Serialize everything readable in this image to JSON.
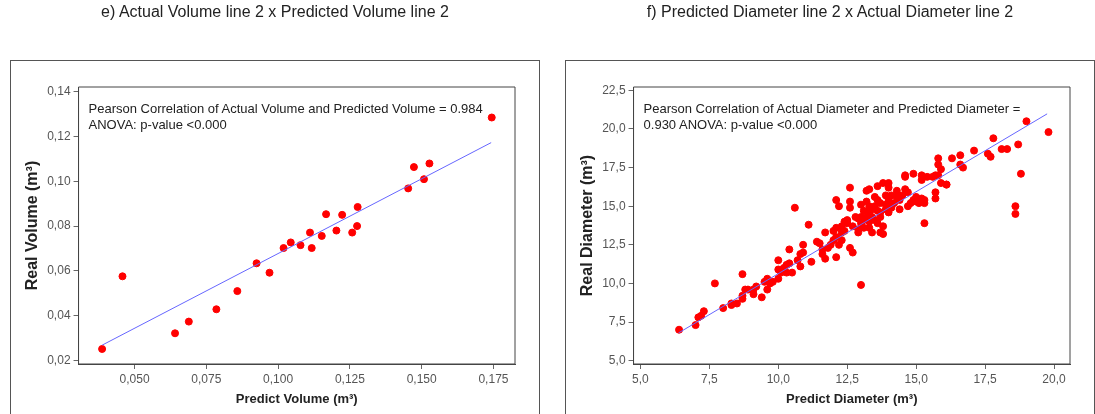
{
  "chart_data": [
    {
      "type": "scatter",
      "title": "e) Actual Volume line 2 x Predicted Volume line 2",
      "xlabel": "Predict Volume (m³)",
      "ylabel": "Real Volume (m³)",
      "annotations": [
        "Pearson Correlation of Actual Volume and Predicted Volume = 0.984",
        "ANOVA: p-value <0.000"
      ],
      "xlim": [
        0.0305,
        0.1825
      ],
      "ylim": [
        0.0185,
        0.142
      ],
      "xticks": [
        {
          "value": 0.05,
          "label": "0,050"
        },
        {
          "value": 0.075,
          "label": "0,075"
        },
        {
          "value": 0.1,
          "label": "0,100"
        },
        {
          "value": 0.125,
          "label": "0,125"
        },
        {
          "value": 0.15,
          "label": "0,150"
        },
        {
          "value": 0.175,
          "label": "0,175"
        }
      ],
      "yticks": [
        {
          "value": 0.02,
          "label": "0,02"
        },
        {
          "value": 0.04,
          "label": "0,04"
        },
        {
          "value": 0.06,
          "label": "0,06"
        },
        {
          "value": 0.08,
          "label": "0,08"
        },
        {
          "value": 0.1,
          "label": "0,10"
        },
        {
          "value": 0.12,
          "label": "0,12"
        },
        {
          "value": 0.14,
          "label": "0,14"
        }
      ],
      "grid": false,
      "legend": false,
      "series": [
        {
          "marker": "circle",
          "color": "#ff0000",
          "x": [
            0.0387,
            0.0458,
            0.0641,
            0.0689,
            0.0785,
            0.0858,
            0.0925,
            0.097,
            0.1019,
            0.1044,
            0.1078,
            0.1111,
            0.1117,
            0.1152,
            0.1167,
            0.1203,
            0.1223,
            0.1258,
            0.1275,
            0.1277,
            0.1453,
            0.1473,
            0.1508,
            0.1527,
            0.1744
          ],
          "values": [
            0.0252,
            0.0576,
            0.0322,
            0.0374,
            0.0429,
            0.051,
            0.0634,
            0.0592,
            0.0702,
            0.0727,
            0.0715,
            0.0771,
            0.0702,
            0.0756,
            0.0853,
            0.078,
            0.085,
            0.0771,
            0.08,
            0.0885,
            0.0968,
            0.1063,
            0.1009,
            0.1079,
            0.1284
          ]
        },
        {
          "type": "line",
          "color": "#6666ff",
          "x": [
            0.0387,
            0.1742
          ],
          "values": [
            0.0269,
            0.1172
          ]
        }
      ]
    },
    {
      "type": "scatter",
      "title": "f) Predicted Diameter line 2 x Actual Diameter line 2",
      "xlabel": "Predict Diameter (m³)",
      "ylabel": "Real Diameter (m³)",
      "annotations": [
        "Pearson Correlation of Actual Diameter and Predicted Diameter =",
        "0.930 ANOVA: p-value <0.000"
      ],
      "xlim": [
        4.75,
        20.58
      ],
      "ylim": [
        4.78,
        22.72
      ],
      "xticks": [
        {
          "value": 5,
          "label": "5,0"
        },
        {
          "value": 7.5,
          "label": "7,5"
        },
        {
          "value": 10,
          "label": "10,0"
        },
        {
          "value": 12.5,
          "label": "12,5"
        },
        {
          "value": 15,
          "label": "15,0"
        },
        {
          "value": 17.5,
          "label": "17,5"
        },
        {
          "value": 20,
          "label": "20,0"
        }
      ],
      "yticks": [
        {
          "value": 5,
          "label": "5,0"
        },
        {
          "value": 7.5,
          "label": "7,5"
        },
        {
          "value": 10,
          "label": "10,0"
        },
        {
          "value": 12.5,
          "label": "12,5"
        },
        {
          "value": 15,
          "label": "15,0"
        },
        {
          "value": 17.5,
          "label": "17,5"
        },
        {
          "value": 20,
          "label": "20,0"
        },
        {
          "value": 22.5,
          "label": "22,5"
        }
      ],
      "grid": false,
      "legend": false,
      "series": [
        {
          "marker": "circle",
          "color": "#ff0000",
          "x": [
            6.4,
            7.0,
            7.1,
            7.2,
            7.3,
            7.7,
            8.0,
            8.3,
            8.3,
            8.5,
            8.7,
            8.7,
            8.7,
            8.8,
            8.9,
            9.1,
            9.1,
            9.2,
            9.4,
            9.5,
            9.6,
            9.6,
            9.7,
            9.8,
            10.0,
            10.0,
            10.0,
            10.1,
            10.2,
            10.3,
            10.3,
            10.4,
            10.4,
            10.5,
            10.6,
            10.7,
            10.8,
            10.8,
            10.9,
            10.9,
            11.1,
            11.2,
            11.4,
            11.5,
            11.6,
            11.6,
            11.7,
            11.7,
            11.8,
            11.9,
            12.0,
            12.0,
            12.1,
            12.1,
            12.1,
            12.1,
            12.2,
            12.2,
            12.3,
            12.3,
            12.3,
            12.4,
            12.4,
            12.5,
            12.5,
            12.6,
            12.6,
            12.6,
            12.6,
            12.7,
            12.7,
            12.8,
            12.9,
            12.9,
            12.9,
            13.0,
            13.0,
            13.0,
            13.0,
            13.1,
            13.1,
            13.1,
            13.2,
            13.2,
            13.2,
            13.3,
            13.3,
            13.3,
            13.3,
            13.3,
            13.4,
            13.4,
            13.4,
            13.5,
            13.5,
            13.5,
            13.6,
            13.6,
            13.6,
            13.6,
            13.7,
            13.7,
            13.7,
            13.7,
            13.8,
            13.8,
            13.8,
            13.9,
            13.9,
            13.9,
            14.0,
            14.0,
            14.0,
            14.0,
            14.1,
            14.1,
            14.1,
            14.2,
            14.3,
            14.3,
            14.4,
            14.4,
            14.5,
            14.6,
            14.6,
            14.6,
            14.7,
            14.7,
            14.8,
            14.9,
            14.9,
            15.0,
            15.0,
            15.1,
            15.2,
            15.2,
            15.2,
            15.3,
            15.3,
            15.3,
            15.4,
            15.6,
            15.7,
            15.7,
            15.7,
            15.8,
            15.8,
            15.8,
            15.9,
            15.9,
            16.1,
            16.1,
            16.3,
            16.6,
            16.6,
            16.7,
            17.1,
            17.6,
            17.7,
            17.8,
            18.1,
            18.3,
            18.6,
            18.6,
            18.7,
            18.8,
            19.0,
            19.8
          ],
          "values": [
            7.0,
            7.3,
            7.8,
            7.9,
            8.2,
            10.0,
            8.4,
            8.6,
            8.7,
            8.7,
            10.6,
            9.0,
            9.2,
            9.6,
            9.6,
            9.6,
            9.3,
            9.8,
            9.1,
            10.1,
            10.3,
            9.6,
            10.0,
            10.1,
            11.5,
            10.3,
            10.9,
            10.7,
            11.0,
            11.2,
            10.7,
            11.3,
            12.2,
            10.7,
            14.9,
            11.5,
            11.9,
            11.1,
            12.0,
            12.5,
            13.8,
            11.4,
            12.7,
            12.6,
            12.2,
            11.9,
            13.3,
            11.6,
            12.3,
            12.5,
            12.8,
            13.4,
            13.6,
            13.0,
            11.7,
            15.4,
            15.0,
            12.5,
            12.8,
            13.3,
            13.7,
            14.0,
            13.4,
            13.9,
            14.1,
            12.3,
            16.2,
            14.9,
            15.3,
            13.7,
            12.0,
            14.3,
            14.2,
            13.3,
            13.5,
            15.1,
            14.3,
            9.9,
            13.9,
            14.7,
            13.6,
            14.1,
            15.3,
            16.0,
            14.3,
            16.1,
            15.0,
            13.6,
            14.6,
            14.0,
            13.3,
            14.3,
            14.8,
            14.1,
            15.6,
            15.0,
            14.7,
            15.4,
            16.3,
            13.9,
            14.6,
            13.3,
            14.3,
            15.2,
            13.2,
            13.7,
            16.5,
            14.8,
            15.7,
            15.1,
            16.2,
            16.5,
            14.6,
            15.4,
            15.0,
            14.9,
            15.7,
            15.2,
            15.6,
            16.0,
            14.8,
            15.4,
            15.7,
            17.0,
            16.1,
            16.9,
            15.0,
            15.9,
            15.2,
            17.1,
            15.4,
            15.6,
            15.3,
            15.2,
            17.0,
            16.7,
            15.5,
            15.4,
            13.9,
            15.2,
            16.9,
            16.9,
            17.0,
            15.5,
            15.9,
            17.0,
            18.1,
            17.7,
            16.5,
            17.4,
            16.4,
            16.4,
            18.1,
            18.3,
            17.7,
            17.5,
            18.6,
            18.4,
            18.2,
            19.4,
            18.7,
            18.7,
            15.0,
            14.5,
            19.0,
            17.1,
            20.5,
            19.8
          ]
        },
        {
          "type": "line",
          "color": "#6666ff",
          "x": [
            6.38,
            19.75
          ],
          "values": [
            6.79,
            20.98
          ]
        }
      ]
    }
  ]
}
